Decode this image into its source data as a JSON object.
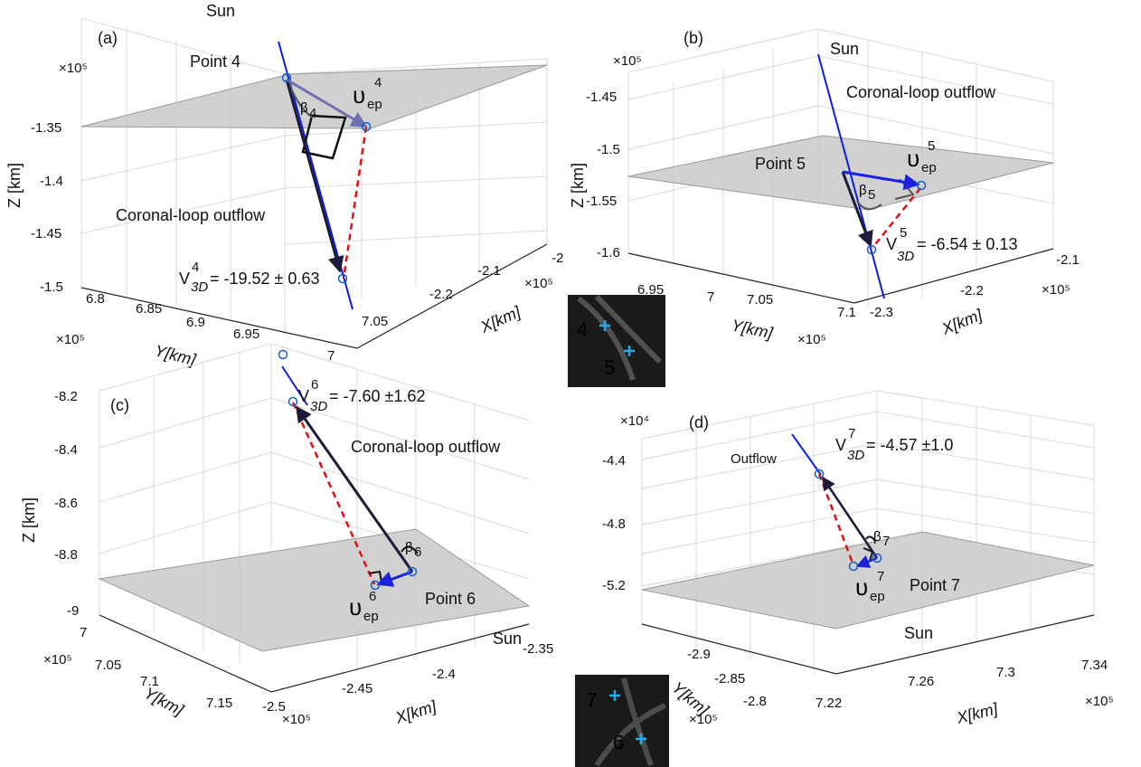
{
  "chart_data": [
    {
      "type": "line",
      "panel": "(a)",
      "sun_label": "Sun",
      "point_label": "Point  4",
      "outflow_label": "Coronal-loop outflow",
      "v3d_label": "= -19.52 ± 0.63",
      "v3d_sup": "4",
      "vep_sup": "4",
      "beta_sub": "4",
      "z_scale": "×10⁵",
      "zlabel": "Z [km]",
      "z_ticks": [
        "-1.35",
        "-1.4",
        "-1.45",
        "-1.5"
      ],
      "ylabel": "Y[km]",
      "y_scale": "×10⁵",
      "y_ticks": [
        "6.8",
        "6.85",
        "6.9",
        "6.95",
        "7"
      ],
      "xlabel": "X[km]",
      "x_scale": "×10⁵",
      "x_ticks": [
        "7.05",
        "-2.2",
        "-2.1",
        "-2"
      ]
    },
    {
      "type": "line",
      "panel": "(b)",
      "sun_label": "Sun",
      "point_label": "Point  5",
      "outflow_label": "Coronal-loop outflow",
      "v3d_label": "= -6.54 ± 0.13",
      "v3d_sup": "5",
      "vep_sup": "5",
      "beta_sub": "5",
      "z_scale": "×10⁵",
      "zlabel": "Z [km]",
      "z_ticks": [
        "-1.45",
        "-1.5",
        "-1.55",
        "-1.6"
      ],
      "ylabel": "Y[km]",
      "y_scale": "×10⁵",
      "y_ticks": [
        "6.95",
        "7",
        "7.05",
        "7.1"
      ],
      "xlabel": "X[km]",
      "x_scale": "×10⁵",
      "x_ticks": [
        "-2.3",
        "-2.2",
        "-2.1"
      ]
    },
    {
      "type": "line",
      "panel": "(c)",
      "sun_label": "Sun",
      "point_label": "Point  6",
      "outflow_label": "Coronal-loop outflow",
      "v3d_label": "= -7.60 ±1.62",
      "v3d_sup": "6",
      "vep_sup": "6",
      "beta_sub": "6",
      "zlabel": "Z [km]",
      "z_ticks": [
        "-8.2",
        "-8.4",
        "-8.6",
        "-8.8",
        "-9"
      ],
      "ylabel": "Y[km]",
      "y_scale": "×10⁵",
      "y_ticks": [
        "7",
        "7.05",
        "7.1",
        "7.15"
      ],
      "xlabel": "X[km]",
      "x_scale": "×10⁵",
      "x_ticks": [
        "-2.5",
        "-2.45",
        "-2.4",
        "-2.35"
      ]
    },
    {
      "type": "line",
      "panel": "(d)",
      "sun_label": "Sun",
      "point_label": "Point  7",
      "outflow_label": "Outflow",
      "v3d_label": "= -4.57 ±1.0",
      "v3d_sup": "7",
      "vep_sup": "7",
      "beta_sub": "7",
      "z_scale": "×10⁴",
      "z_ticks": [
        "-4.4",
        "-4.8",
        "-5.2"
      ],
      "ylabel": "Y[km]",
      "y_scale": "×10⁵",
      "y_ticks": [
        "-2.9",
        "-2.85",
        "-2.8"
      ],
      "xlabel": "X[km]",
      "x_scale": "×10⁵",
      "x_ticks": [
        "7.22",
        "7.26",
        "7.3",
        "7.34"
      ]
    }
  ],
  "insets": [
    {
      "labels": [
        "4",
        "5"
      ]
    },
    {
      "labels": [
        "7",
        "6"
      ]
    }
  ],
  "symbols": {
    "v3d": "V",
    "v3d_sub": "3D",
    "vep": "υ",
    "vep_sub": "ep",
    "beta": "β"
  },
  "colors": {
    "sun_line": "#0a1ee6",
    "dashed": "#e01010",
    "points": "#1560c8",
    "plane": "#c9c9c9",
    "arrow_dark": "#1c1c3a",
    "arrow_blue": "#1a22e0",
    "arrow_purple": "#7070b0"
  }
}
